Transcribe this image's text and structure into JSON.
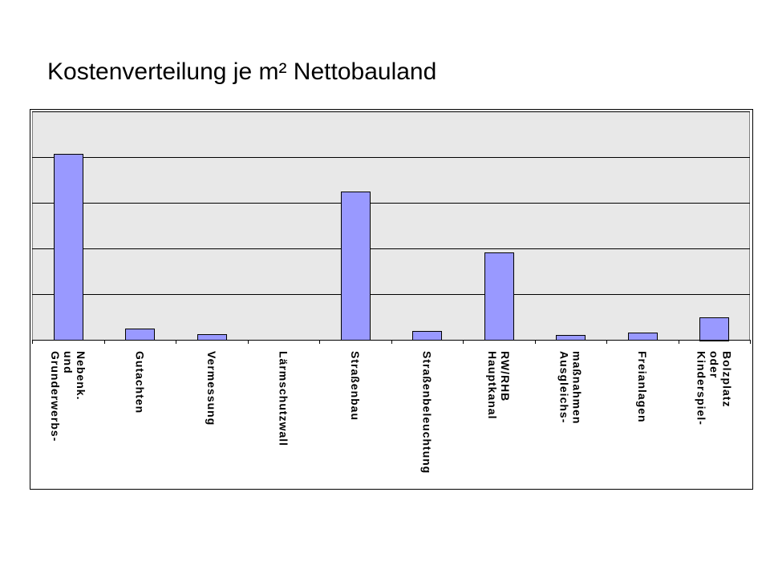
{
  "chart_data": {
    "type": "bar",
    "title": "Kostenverteilung je m² Nettobauland",
    "xlabel": "",
    "ylabel": "",
    "categories": [
      [
        "Grunderwerbs-",
        "und",
        "Nebenk."
      ],
      [
        "Gutachten"
      ],
      [
        "Vermessung"
      ],
      [
        "Lärmschutzwall"
      ],
      [
        "Straßenbau"
      ],
      [
        "Straßenbeleuchtung"
      ],
      [
        "Hauptkanal",
        "RW/RHB"
      ],
      [
        "Ausgleichs-",
        "maßnahmen"
      ],
      [
        "Freianlagen"
      ],
      [
        "Kinderspiel-",
        "oder",
        "Bolzplatz"
      ]
    ],
    "values": [
      40.7,
      2.4,
      1.3,
      0,
      32.4,
      2.0,
      19.2,
      1.1,
      1.6,
      5.0
    ],
    "ylim": [
      0,
      50
    ],
    "y_gridlines": [
      10,
      20,
      30,
      40,
      50
    ],
    "grid": true,
    "legend": "none",
    "y_tick_labels_shown": false,
    "colors": {
      "bar_fill": "#9999ff",
      "bar_stroke": "#000000",
      "plot_background": "#e8e8e8",
      "chart_background": "#ffffff",
      "gridline": "#000000"
    }
  }
}
